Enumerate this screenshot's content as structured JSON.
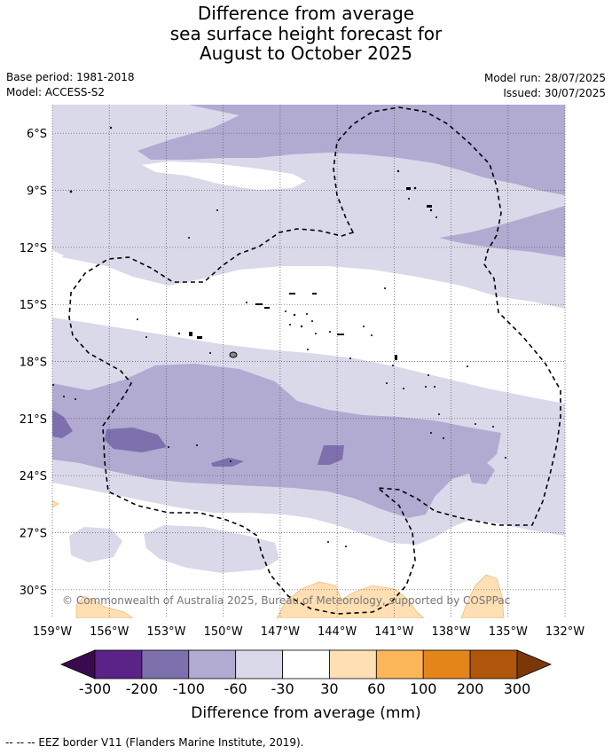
{
  "title": {
    "line1": "Difference from average",
    "line2": "sea surface height forecast for",
    "line3": "August to October 2025"
  },
  "meta": {
    "base_period": "Base period: 1981-2018",
    "model": "Model: ACCESS-S2",
    "model_run": "Model run: 28/07/2025",
    "issued": "Issued: 30/07/2025"
  },
  "map": {
    "lon_range": [
      -159,
      -132
    ],
    "lat_range": [
      -31.5,
      -4.5
    ],
    "lon_ticks": [
      {
        "value": -159,
        "label": "159°W"
      },
      {
        "value": -156,
        "label": "156°W"
      },
      {
        "value": -153,
        "label": "153°W"
      },
      {
        "value": -150,
        "label": "150°W"
      },
      {
        "value": -147,
        "label": "147°W"
      },
      {
        "value": -144,
        "label": "144°W"
      },
      {
        "value": -141,
        "label": "141°W"
      },
      {
        "value": -138,
        "label": "138°W"
      },
      {
        "value": -135,
        "label": "135°W"
      },
      {
        "value": -132,
        "label": "132°W"
      }
    ],
    "lat_ticks": [
      {
        "value": -6,
        "label": "6°S"
      },
      {
        "value": -9,
        "label": "9°S"
      },
      {
        "value": -12,
        "label": "12°S"
      },
      {
        "value": -15,
        "label": "15°S"
      },
      {
        "value": -18,
        "label": "18°S"
      },
      {
        "value": -21,
        "label": "21°S"
      },
      {
        "value": -24,
        "label": "24°S"
      },
      {
        "value": -27,
        "label": "27°S"
      },
      {
        "value": -30,
        "label": "30°S"
      }
    ],
    "copyright": "© Commonwealth of Australia 2025, Bureau of Meteorology, supported by COSPPac",
    "gridlines": true
  },
  "colorbar": {
    "label": "Difference from average (mm)",
    "ticks": [
      "-300",
      "-200",
      "-100",
      "-60",
      "-30",
      "30",
      "60",
      "100",
      "200",
      "300"
    ],
    "bins": [
      {
        "from": "-300",
        "to": "-200",
        "color": "#5b2387"
      },
      {
        "from": "-200",
        "to": "-100",
        "color": "#7e6fad"
      },
      {
        "from": "-100",
        "to": "-60",
        "color": "#b1aad1"
      },
      {
        "from": "-60",
        "to": "-30",
        "color": "#d9d9ea"
      },
      {
        "from": "-30",
        "to": "30",
        "color": "#ffffff"
      },
      {
        "from": "30",
        "to": "60",
        "color": "#ffdfb3"
      },
      {
        "from": "60",
        "to": "100",
        "color": "#fbb659"
      },
      {
        "from": "100",
        "to": "200",
        "color": "#e38519"
      },
      {
        "from": "200",
        "to": "300",
        "color": "#b0560b"
      }
    ],
    "under_color": "#3a0a4e",
    "over_color": "#7a3808"
  },
  "footnote": "--  --  -- EEZ border V11 (Flanders Marine Institute, 2019)."
}
